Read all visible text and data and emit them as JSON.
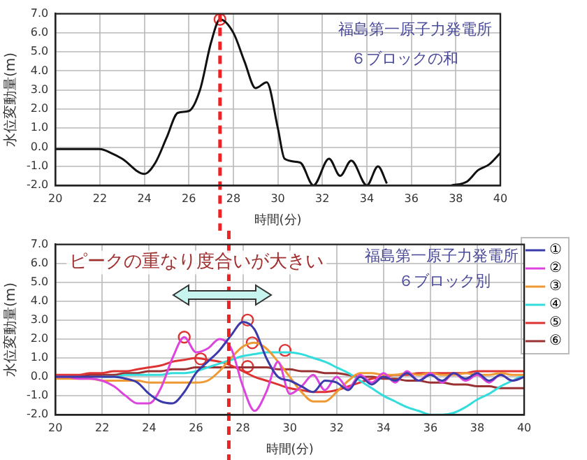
{
  "chart_data": [
    {
      "type": "line",
      "xlabel": "時間(分)",
      "ylabel": "水位変動量(m)",
      "xlim": [
        20,
        40
      ],
      "xticks": [
        20,
        22,
        24,
        26,
        28,
        30,
        32,
        34,
        36,
        38,
        40
      ],
      "ylim": [
        -2,
        7
      ],
      "yticks": [
        {
          "value": -2,
          "label": "-2.0"
        },
        {
          "value": -1,
          "label": "-1.0"
        },
        {
          "value": 0,
          "label": "0.0"
        },
        {
          "value": 1,
          "label": "1.0"
        },
        {
          "value": 2,
          "label": "2.0"
        },
        {
          "value": 3,
          "label": "3.0"
        },
        {
          "value": 4,
          "label": "4.0"
        },
        {
          "value": 5,
          "label": "5.0"
        },
        {
          "value": 6,
          "label": "6.0"
        },
        {
          "value": 7,
          "label": "7.0"
        }
      ],
      "grid": true,
      "marker": "none",
      "line_style": "solid",
      "annotations": [
        "福島第一原子力発電所",
        "６ブロックの和"
      ],
      "ref_lines": [
        {
          "axis": "x",
          "value": 27.4,
          "color": "#ee2222",
          "line_style": "dashed"
        }
      ],
      "series": [
        {
          "color": "#111111",
          "x": [
            20,
            22,
            22.5,
            23,
            24,
            24.5,
            25,
            25.5,
            26,
            26.5,
            27,
            27.4,
            28,
            28.5,
            29,
            29.5,
            30,
            30.3,
            31,
            31.6,
            32.3,
            32.8,
            33.3,
            34,
            34.5,
            34.9,
            36.5,
            37.8,
            38.5,
            39,
            39.5,
            40
          ],
          "values": [
            -0.1,
            -0.1,
            -0.3,
            -0.6,
            -1.4,
            -0.8,
            0.5,
            1.8,
            1.9,
            3.0,
            5.5,
            6.7,
            6.0,
            4.5,
            3.1,
            3.4,
            1.0,
            -0.6,
            -0.8,
            -2.0,
            -0.6,
            -1.5,
            -0.7,
            -2.0,
            -1.0,
            -1.9,
            null,
            -2.0,
            -1.8,
            -1.2,
            -0.9,
            -0.3
          ]
        },
        {
          "type": "scatter",
          "marker": "circle",
          "color": "#dd3333",
          "x": [
            27.4
          ],
          "values": [
            6.7
          ]
        }
      ]
    },
    {
      "type": "line",
      "xlabel": "時間(分)",
      "ylabel": "水位変動量(m)",
      "xlim": [
        20,
        40
      ],
      "xticks": [
        20,
        22,
        24,
        26,
        28,
        30,
        32,
        34,
        36,
        38,
        40
      ],
      "ylim": [
        -2,
        7
      ],
      "yticks": [
        {
          "value": -2,
          "label": "-2.0"
        },
        {
          "value": -1,
          "label": "-1.0"
        },
        {
          "value": 0,
          "label": "0.0"
        },
        {
          "value": 1,
          "label": "1.0"
        },
        {
          "value": 2,
          "label": "2.0"
        },
        {
          "value": 3,
          "label": "3.0"
        },
        {
          "value": 4,
          "label": "4.0"
        },
        {
          "value": 5,
          "label": "5.0"
        },
        {
          "value": 6,
          "label": "6.0"
        },
        {
          "value": 7,
          "label": "7.0"
        }
      ],
      "grid": true,
      "marker": "none",
      "line_style": "solid",
      "legend": "right",
      "annotations": [
        "ピークの重なり度合いが大きい",
        "福島第一原子力発電所",
        "６ブロック別"
      ],
      "ref_lines": [
        {
          "axis": "x",
          "value": 27.4,
          "color": "#ee2222",
          "line_style": "dashed"
        }
      ],
      "x": [
        20,
        20.5,
        21,
        21.5,
        22,
        22.5,
        23,
        23.5,
        24,
        24.5,
        25,
        25.5,
        26,
        26.5,
        27,
        27.5,
        28,
        28.5,
        29,
        29.5,
        30,
        30.5,
        31,
        31.5,
        32,
        32.5,
        33,
        33.5,
        34,
        34.5,
        35,
        35.5,
        36,
        36.5,
        37,
        37.5,
        38,
        38.5,
        39,
        39.5,
        40
      ],
      "series": [
        {
          "name": "①",
          "color": "#3a3aaa",
          "values": [
            0,
            0,
            0,
            0,
            0,
            0,
            -0.1,
            -0.3,
            -0.9,
            -1.3,
            -1.4,
            -0.8,
            0.2,
            0.8,
            1.4,
            2.2,
            2.9,
            2.5,
            1.0,
            0.0,
            -0.2,
            -0.5,
            -0.8,
            -0.2,
            -0.3,
            -0.7,
            0.0,
            -0.4,
            0.0,
            -0.2,
            0.2,
            -0.2,
            0.1,
            -0.2,
            0.2,
            -0.1,
            0.2,
            -0.2,
            0.1,
            -0.2,
            0.0
          ]
        },
        {
          "name": "②",
          "color": "#dd44dd",
          "values": [
            0,
            0,
            -0.1,
            -0.1,
            -0.2,
            -0.5,
            -1.0,
            -1.4,
            -1.4,
            -0.6,
            1.0,
            2.1,
            1.3,
            1.5,
            2.0,
            1.5,
            -0.5,
            -1.8,
            -0.8,
            0.8,
            -0.9,
            -0.5,
            0.1,
            -0.7,
            0.0,
            -0.6,
            0.1,
            -0.3,
            0.2,
            -0.3,
            0.3,
            -0.2,
            0.2,
            -0.3,
            0.2,
            -0.2,
            0.1,
            -0.3,
            0.1,
            -0.2,
            0.0
          ]
        },
        {
          "name": "③",
          "color": "#ee9933",
          "values": [
            -0.1,
            -0.1,
            -0.1,
            -0.1,
            -0.2,
            -0.2,
            -0.2,
            -0.2,
            -0.3,
            -0.3,
            -0.3,
            -0.3,
            -0.3,
            -0.2,
            0.3,
            1.0,
            1.6,
            1.8,
            1.5,
            0.8,
            0.0,
            -0.8,
            -1.3,
            -1.3,
            -0.8,
            -0.2,
            0.2,
            0.2,
            0.1,
            0.1,
            0.2,
            0.1,
            0.2,
            0.1,
            0.1,
            0.2,
            0.1,
            0.1,
            0.2,
            0.1,
            0.1
          ]
        },
        {
          "name": "④",
          "color": "#33dddd",
          "values": [
            null,
            null,
            null,
            null,
            0.0,
            0.0,
            0.1,
            0.1,
            0.1,
            0.1,
            0.2,
            0.2,
            0.3,
            0.5,
            0.7,
            0.9,
            1.1,
            1.2,
            1.3,
            1.3,
            1.3,
            1.2,
            1.0,
            0.8,
            0.5,
            0.2,
            -0.2,
            -0.6,
            -1.0,
            -1.3,
            -1.6,
            -1.8,
            -2.0,
            -2.0,
            -1.9,
            -1.6,
            -1.2,
            -0.9,
            -0.5,
            -0.2,
            0.1
          ]
        },
        {
          "name": "⑤",
          "color": "#dd3333",
          "values": [
            0.1,
            0.1,
            0.1,
            0.2,
            0.2,
            0.3,
            0.3,
            0.4,
            0.5,
            0.6,
            0.8,
            0.9,
            1.0,
            0.9,
            0.8,
            0.6,
            0.3,
            0.0,
            -0.2,
            -0.4,
            -0.6,
            -0.7,
            -0.8,
            -0.8,
            -0.7,
            -0.5,
            -0.3,
            -0.1,
            0.0,
            0.1,
            0.1,
            0.2,
            0.2,
            0.2,
            0.2,
            0.2,
            0.3,
            0.3,
            0.3,
            0.3,
            0.3
          ]
        },
        {
          "name": "⑥",
          "color": "#993333",
          "values": [
            0.0,
            0.0,
            0.0,
            0.1,
            0.1,
            0.1,
            0.2,
            0.2,
            0.3,
            0.3,
            0.4,
            0.4,
            0.5,
            0.5,
            0.5,
            0.5,
            0.5,
            0.5,
            0.5,
            0.4,
            0.4,
            0.3,
            0.3,
            0.2,
            0.2,
            0.1,
            0.0,
            0.0,
            -0.1,
            -0.1,
            -0.2,
            -0.2,
            -0.3,
            -0.3,
            -0.4,
            -0.4,
            -0.5,
            -0.5,
            -0.6,
            -0.6,
            -0.6
          ]
        },
        {
          "type": "scatter",
          "marker": "circle",
          "color": "#dd3333",
          "x": [
            25.5,
            26.2,
            28.2,
            28.4,
            28.2,
            29.8
          ],
          "values": [
            2.1,
            0.95,
            3.0,
            1.8,
            0.55,
            1.4
          ]
        }
      ]
    }
  ]
}
